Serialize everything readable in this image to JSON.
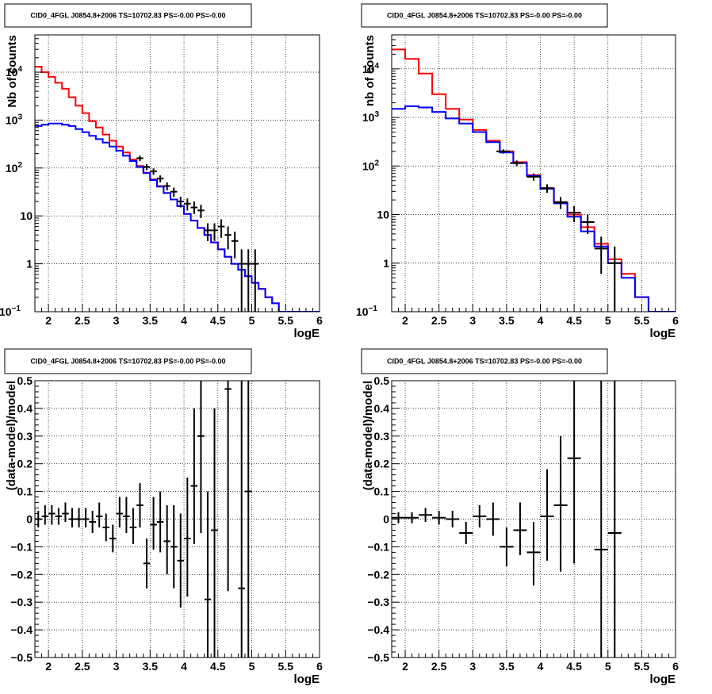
{
  "chart_data": [
    {
      "type": "step",
      "title": "CID0_4FGL J0854.8+2006 TS=10702.83 PS=-0.00 PS=-0.00",
      "xlabel": "logE",
      "ylabel": "Nb of counts",
      "xlim": [
        1.8,
        6
      ],
      "ylim": [
        0.1,
        60000
      ],
      "y_scale": "log",
      "grid": true,
      "xticks": [
        "2",
        "2.5",
        "3",
        "3.5",
        "4",
        "4.5",
        "5",
        "5.5",
        "6"
      ],
      "yticks": [
        "10⁻¹",
        "1",
        "10",
        "10²",
        "10³",
        "10⁴"
      ],
      "series": [
        {
          "color": "#ff0000",
          "style": "step",
          "edges": [
            1.8,
            1.9,
            2.0,
            2.1,
            2.2,
            2.3,
            2.4,
            2.5,
            2.6,
            2.7,
            2.8,
            2.9,
            3.0,
            3.1,
            3.2,
            3.3,
            3.4,
            3.5,
            3.6,
            3.7,
            3.8,
            3.9,
            4.0,
            4.1,
            4.2,
            4.3,
            4.4,
            4.5,
            4.6,
            4.7,
            4.8,
            4.9,
            5.0,
            5.1,
            5.2,
            5.3,
            5.4,
            5.5,
            6.0
          ],
          "values": [
            13000,
            10000,
            8000,
            6000,
            4500,
            3000,
            2000,
            1400,
            950,
            700,
            500,
            370,
            280,
            210,
            150,
            110,
            80,
            58,
            42,
            30,
            22,
            16,
            11,
            8,
            5.6,
            4,
            2.8,
            2,
            1.4,
            1,
            0.75,
            0.55,
            0.4,
            0.3,
            0.2,
            0.15,
            0.1,
            0.1
          ]
        },
        {
          "color": "#0000ff",
          "style": "step",
          "edges": [
            1.8,
            1.9,
            2.0,
            2.1,
            2.2,
            2.3,
            2.4,
            2.5,
            2.6,
            2.7,
            2.8,
            2.9,
            3.0,
            3.1,
            3.2,
            3.3,
            3.4,
            3.5,
            3.6,
            3.7,
            3.8,
            3.9,
            4.0,
            4.1,
            4.2,
            4.3,
            4.4,
            4.5,
            4.6,
            4.7,
            4.8,
            4.9,
            5.0,
            5.1,
            5.2,
            5.3,
            5.4,
            5.5,
            6.0
          ],
          "values": [
            750,
            800,
            850,
            850,
            800,
            750,
            650,
            560,
            470,
            400,
            340,
            280,
            230,
            180,
            140,
            105,
            78,
            56,
            41,
            30,
            22,
            16,
            11,
            8,
            5.6,
            4,
            2.8,
            2,
            1.4,
            1,
            0.75,
            0.55,
            0.4,
            0.3,
            0.2,
            0.15,
            0.1,
            0.1
          ]
        },
        {
          "color": "#000000",
          "style": "errorbar",
          "points": [
            {
              "x": 3.35,
              "xerr": 0.05,
              "y": 160,
              "ylo": 140,
              "yhi": 180
            },
            {
              "x": 3.45,
              "xerr": 0.05,
              "y": 105,
              "ylo": 90,
              "yhi": 120
            },
            {
              "x": 3.55,
              "xerr": 0.05,
              "y": 85,
              "ylo": 72,
              "yhi": 98
            },
            {
              "x": 3.65,
              "xerr": 0.05,
              "y": 60,
              "ylo": 50,
              "yhi": 70
            },
            {
              "x": 3.75,
              "xerr": 0.05,
              "y": 42,
              "ylo": 34,
              "yhi": 50
            },
            {
              "x": 3.85,
              "xerr": 0.05,
              "y": 32,
              "ylo": 25,
              "yhi": 39
            },
            {
              "x": 3.95,
              "xerr": 0.05,
              "y": 20,
              "ylo": 15,
              "yhi": 25
            },
            {
              "x": 4.05,
              "xerr": 0.05,
              "y": 18,
              "ylo": 13,
              "yhi": 23
            },
            {
              "x": 4.15,
              "xerr": 0.05,
              "y": 15,
              "ylo": 11,
              "yhi": 20
            },
            {
              "x": 4.25,
              "xerr": 0.05,
              "y": 13,
              "ylo": 9,
              "yhi": 17
            },
            {
              "x": 4.35,
              "xerr": 0.05,
              "y": 5,
              "ylo": 3,
              "yhi": 7
            },
            {
              "x": 4.45,
              "xerr": 0.05,
              "y": 5,
              "ylo": 3,
              "yhi": 7
            },
            {
              "x": 4.55,
              "xerr": 0.05,
              "y": 6,
              "ylo": 3.5,
              "yhi": 8.5
            },
            {
              "x": 4.65,
              "xerr": 0.05,
              "y": 4,
              "ylo": 2,
              "yhi": 6
            },
            {
              "x": 4.75,
              "xerr": 0.05,
              "y": 3,
              "ylo": 1.3,
              "yhi": 4.7
            },
            {
              "x": 4.85,
              "xerr": 0.05,
              "y": 1,
              "ylo": 0.1,
              "yhi": 2
            },
            {
              "x": 4.95,
              "xerr": 0.05,
              "y": 1,
              "ylo": 0.1,
              "yhi": 2
            },
            {
              "x": 5.05,
              "xerr": 0.05,
              "y": 1,
              "ylo": 0.1,
              "yhi": 2
            }
          ]
        }
      ]
    },
    {
      "type": "step",
      "title": "CID0_4FGL J0854.8+2006 TS=10702.83 PS=-0.00 PS=-0.00",
      "xlabel": "logE",
      "ylabel": "nb of counts",
      "xlim": [
        1.8,
        6
      ],
      "ylim": [
        0.1,
        50000
      ],
      "y_scale": "log",
      "grid": true,
      "xticks": [
        "2",
        "2.5",
        "3",
        "3.5",
        "4",
        "4.5",
        "5",
        "5.5",
        "6"
      ],
      "yticks": [
        "10⁻¹",
        "1",
        "10",
        "10²",
        "10³",
        "10⁴"
      ],
      "series": [
        {
          "color": "#ff0000",
          "style": "step",
          "edges": [
            1.8,
            2.0,
            2.2,
            2.4,
            2.6,
            2.8,
            3.0,
            3.2,
            3.4,
            3.6,
            3.8,
            4.0,
            4.2,
            4.4,
            4.6,
            4.8,
            5.0,
            5.2,
            5.4,
            5.6,
            6.0
          ],
          "values": [
            25000,
            16000,
            8000,
            3000,
            1500,
            900,
            550,
            330,
            200,
            120,
            65,
            35,
            18,
            10,
            5.5,
            2.5,
            1.2,
            0.6,
            0.2,
            0.1
          ]
        },
        {
          "color": "#0000ff",
          "style": "step",
          "edges": [
            1.8,
            2.0,
            2.2,
            2.4,
            2.6,
            2.8,
            3.0,
            3.2,
            3.4,
            3.6,
            3.8,
            4.0,
            4.2,
            4.4,
            4.6,
            4.8,
            5.0,
            5.2,
            5.4,
            5.6,
            6.0
          ],
          "values": [
            1500,
            1700,
            1600,
            1300,
            950,
            750,
            500,
            310,
            190,
            115,
            63,
            34,
            17,
            9,
            4.5,
            2.2,
            1,
            0.5,
            0.2,
            0.1
          ]
        },
        {
          "color": "#000000",
          "style": "errorbar",
          "points": [
            {
              "x": 3.45,
              "xerr": 0.1,
              "y": 200,
              "ylo": 180,
              "yhi": 220
            },
            {
              "x": 3.65,
              "xerr": 0.1,
              "y": 115,
              "ylo": 100,
              "yhi": 130
            },
            {
              "x": 3.9,
              "xerr": 0.1,
              "y": 60,
              "ylo": 50,
              "yhi": 70
            },
            {
              "x": 4.1,
              "xerr": 0.1,
              "y": 35,
              "ylo": 28,
              "yhi": 42
            },
            {
              "x": 4.3,
              "xerr": 0.1,
              "y": 18,
              "ylo": 13,
              "yhi": 23
            },
            {
              "x": 4.5,
              "xerr": 0.1,
              "y": 11,
              "ylo": 7,
              "yhi": 15
            },
            {
              "x": 4.7,
              "xerr": 0.1,
              "y": 7,
              "ylo": 4,
              "yhi": 10
            },
            {
              "x": 4.9,
              "xerr": 0.1,
              "y": 2,
              "ylo": 0.6,
              "yhi": 3.5
            },
            {
              "x": 5.1,
              "xerr": 0.1,
              "y": 1,
              "ylo": 0.1,
              "yhi": 2.2
            }
          ]
        }
      ]
    },
    {
      "type": "scatter",
      "title": "CID0_4FGL J0854.8+2006 TS=10702.83 PS=-0.00 PS=-0.00",
      "xlabel": "logE",
      "ylabel": "(data-model)/model",
      "xlim": [
        1.8,
        6
      ],
      "ylim": [
        -0.5,
        0.5
      ],
      "grid": true,
      "xticks": [
        "2",
        "2.5",
        "3",
        "3.5",
        "4",
        "4.5",
        "5",
        "5.5",
        "6"
      ],
      "yticks": [
        "−0.5",
        "−0.4",
        "−0.3",
        "−0.2",
        "−0.1",
        "0",
        "0.1",
        "0.2",
        "0.3",
        "0.4",
        "0.5"
      ],
      "series": [
        {
          "color": "#000000",
          "style": "errorbar",
          "points": [
            {
              "x": 1.85,
              "xerr": 0.05,
              "y": 0.0,
              "ylo": -0.03,
              "yhi": 0.03
            },
            {
              "x": 1.95,
              "xerr": 0.05,
              "y": 0.01,
              "ylo": -0.02,
              "yhi": 0.05
            },
            {
              "x": 2.05,
              "xerr": 0.05,
              "y": 0.02,
              "ylo": -0.02,
              "yhi": 0.05
            },
            {
              "x": 2.15,
              "xerr": 0.05,
              "y": 0.01,
              "ylo": -0.02,
              "yhi": 0.04
            },
            {
              "x": 2.25,
              "xerr": 0.05,
              "y": 0.02,
              "ylo": -0.01,
              "yhi": 0.06
            },
            {
              "x": 2.35,
              "xerr": 0.05,
              "y": 0.0,
              "ylo": -0.03,
              "yhi": 0.04
            },
            {
              "x": 2.45,
              "xerr": 0.05,
              "y": 0.0,
              "ylo": -0.03,
              "yhi": 0.04
            },
            {
              "x": 2.55,
              "xerr": 0.05,
              "y": 0.0,
              "ylo": -0.03,
              "yhi": 0.04
            },
            {
              "x": 2.65,
              "xerr": 0.05,
              "y": -0.01,
              "ylo": -0.05,
              "yhi": 0.03
            },
            {
              "x": 2.75,
              "xerr": 0.05,
              "y": 0.01,
              "ylo": -0.03,
              "yhi": 0.06
            },
            {
              "x": 2.85,
              "xerr": 0.05,
              "y": -0.03,
              "ylo": -0.08,
              "yhi": 0.02
            },
            {
              "x": 2.95,
              "xerr": 0.05,
              "y": -0.07,
              "ylo": -0.12,
              "yhi": -0.02
            },
            {
              "x": 3.05,
              "xerr": 0.05,
              "y": 0.02,
              "ylo": -0.03,
              "yhi": 0.08
            },
            {
              "x": 3.15,
              "xerr": 0.05,
              "y": 0.01,
              "ylo": -0.05,
              "yhi": 0.08
            },
            {
              "x": 3.25,
              "xerr": 0.05,
              "y": -0.03,
              "ylo": -0.09,
              "yhi": 0.04
            },
            {
              "x": 3.35,
              "xerr": 0.05,
              "y": 0.05,
              "ylo": -0.03,
              "yhi": 0.13
            },
            {
              "x": 3.45,
              "xerr": 0.05,
              "y": -0.16,
              "ylo": -0.25,
              "yhi": -0.07
            },
            {
              "x": 3.55,
              "xerr": 0.05,
              "y": -0.02,
              "ylo": -0.11,
              "yhi": 0.08
            },
            {
              "x": 3.65,
              "xerr": 0.05,
              "y": -0.01,
              "ylo": -0.12,
              "yhi": 0.1
            },
            {
              "x": 3.75,
              "xerr": 0.05,
              "y": -0.08,
              "ylo": -0.2,
              "yhi": 0.05
            },
            {
              "x": 3.85,
              "xerr": 0.05,
              "y": -0.1,
              "ylo": -0.25,
              "yhi": 0.05
            },
            {
              "x": 3.95,
              "xerr": 0.05,
              "y": -0.15,
              "ylo": -0.32,
              "yhi": 0.02
            },
            {
              "x": 4.05,
              "xerr": 0.05,
              "y": -0.07,
              "ylo": -0.28,
              "yhi": 0.15
            },
            {
              "x": 4.15,
              "xerr": 0.05,
              "y": 0.12,
              "ylo": -0.09,
              "yhi": 0.4
            },
            {
              "x": 4.25,
              "xerr": 0.05,
              "y": 0.3,
              "ylo": -0.05,
              "yhi": 0.6
            },
            {
              "x": 4.35,
              "xerr": 0.05,
              "y": -0.29,
              "ylo": -0.6,
              "yhi": 0.1
            },
            {
              "x": 4.45,
              "xerr": 0.05,
              "y": -0.04,
              "ylo": -0.6,
              "yhi": 0.4
            },
            {
              "x": 4.65,
              "xerr": 0.05,
              "y": 0.47,
              "ylo": -0.26,
              "yhi": 0.6
            },
            {
              "x": 4.85,
              "xerr": 0.05,
              "y": -0.25,
              "ylo": -0.6,
              "yhi": 0.6
            },
            {
              "x": 4.95,
              "xerr": 0.05,
              "y": 0.1,
              "ylo": -0.6,
              "yhi": 0.6
            }
          ]
        }
      ]
    },
    {
      "type": "scatter",
      "title": "CID0_4FGL J0854.8+2006 TS=10702.83 PS=-0.00 PS=-0.00",
      "xlabel": "logE",
      "ylabel": "(data-model)/model",
      "xlim": [
        1.8,
        6
      ],
      "ylim": [
        -0.5,
        0.5
      ],
      "grid": true,
      "xticks": [
        "2",
        "2.5",
        "3",
        "3.5",
        "4",
        "4.5",
        "5",
        "5.5",
        "6"
      ],
      "yticks": [
        "−0.5",
        "−0.4",
        "−0.3",
        "−0.2",
        "−0.1",
        "0",
        "0.1",
        "0.2",
        "0.3",
        "0.4",
        "0.5"
      ],
      "series": [
        {
          "color": "#000000",
          "style": "errorbar",
          "points": [
            {
              "x": 1.9,
              "xerr": 0.1,
              "y": 0.005,
              "ylo": -0.015,
              "yhi": 0.025
            },
            {
              "x": 2.1,
              "xerr": 0.1,
              "y": 0.005,
              "ylo": -0.015,
              "yhi": 0.025
            },
            {
              "x": 2.3,
              "xerr": 0.1,
              "y": 0.015,
              "ylo": -0.01,
              "yhi": 0.04
            },
            {
              "x": 2.5,
              "xerr": 0.1,
              "y": 0.005,
              "ylo": -0.02,
              "yhi": 0.03
            },
            {
              "x": 2.7,
              "xerr": 0.1,
              "y": 0.0,
              "ylo": -0.03,
              "yhi": 0.03
            },
            {
              "x": 2.9,
              "xerr": 0.1,
              "y": -0.05,
              "ylo": -0.09,
              "yhi": -0.01
            },
            {
              "x": 3.1,
              "xerr": 0.1,
              "y": 0.01,
              "ylo": -0.03,
              "yhi": 0.05
            },
            {
              "x": 3.3,
              "xerr": 0.1,
              "y": 0.0,
              "ylo": -0.06,
              "yhi": 0.06
            },
            {
              "x": 3.5,
              "xerr": 0.1,
              "y": -0.1,
              "ylo": -0.17,
              "yhi": -0.03
            },
            {
              "x": 3.7,
              "xerr": 0.1,
              "y": -0.04,
              "ylo": -0.13,
              "yhi": 0.06
            },
            {
              "x": 3.9,
              "xerr": 0.1,
              "y": -0.12,
              "ylo": -0.24,
              "yhi": -0.01
            },
            {
              "x": 4.1,
              "xerr": 0.1,
              "y": 0.01,
              "ylo": -0.15,
              "yhi": 0.18
            },
            {
              "x": 4.3,
              "xerr": 0.1,
              "y": 0.05,
              "ylo": -0.19,
              "yhi": 0.3
            },
            {
              "x": 4.5,
              "xerr": 0.1,
              "y": 0.22,
              "ylo": -0.16,
              "yhi": 0.6
            },
            {
              "x": 4.9,
              "xerr": 0.1,
              "y": -0.11,
              "ylo": -0.6,
              "yhi": 0.6
            },
            {
              "x": 5.1,
              "xerr": 0.1,
              "y": -0.05,
              "ylo": -0.6,
              "yhi": 0.6
            }
          ]
        }
      ]
    }
  ]
}
